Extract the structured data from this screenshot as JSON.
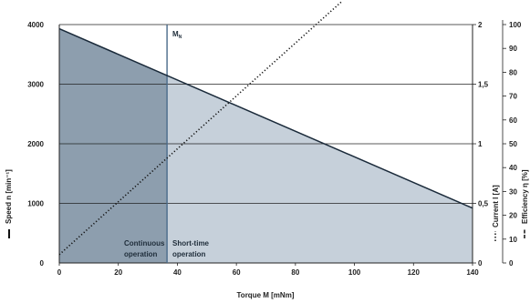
{
  "chart_data": {
    "type": "line",
    "xlabel": "Torque M [mNm]",
    "ylabel_left": "Speed n [min⁻¹]",
    "ylabel_right1": "Current I [A]",
    "ylabel_right2": "Efficiency η [%]",
    "xlim": [
      0,
      140
    ],
    "ylim_speed": [
      0,
      4000
    ],
    "ylim_current": [
      0,
      2
    ],
    "ylim_efficiency": [
      0,
      100
    ],
    "x_ticks": [
      "0",
      "20",
      "40",
      "60",
      "80",
      "100",
      "120",
      "140"
    ],
    "speed_ticks": [
      "0",
      "1000",
      "2000",
      "3000",
      "4000"
    ],
    "current_ticks": [
      "0",
      "0,5",
      "1",
      "1,5",
      "2"
    ],
    "efficiency_ticks": [
      "0",
      "10",
      "20",
      "30",
      "40",
      "50",
      "60",
      "70",
      "80",
      "90",
      "100"
    ],
    "rated_torque_label": "M",
    "rated_torque_subscript": "N",
    "rated_torque": 36.5,
    "regions": {
      "continuous_line1": "Continuous",
      "continuous_line2": "operation",
      "short_line1": "Short-time",
      "short_line2": "operation"
    },
    "series": [
      {
        "key": "speed",
        "axis": "speed",
        "style": "solid",
        "x": [
          0,
          140
        ],
        "y": [
          3930,
          920
        ]
      },
      {
        "key": "current",
        "axis": "current",
        "style": "dotted",
        "x": [
          0,
          96
        ],
        "y": [
          0.07,
          2.2
        ]
      }
    ],
    "colors": {
      "continuous_fill": "#8d9eae",
      "short_fill": "#c6d0da",
      "rated_line": "#4a6a8a",
      "speed_line": "#1a2a3a",
      "current_line": "#111111",
      "grid": "#222222"
    }
  }
}
